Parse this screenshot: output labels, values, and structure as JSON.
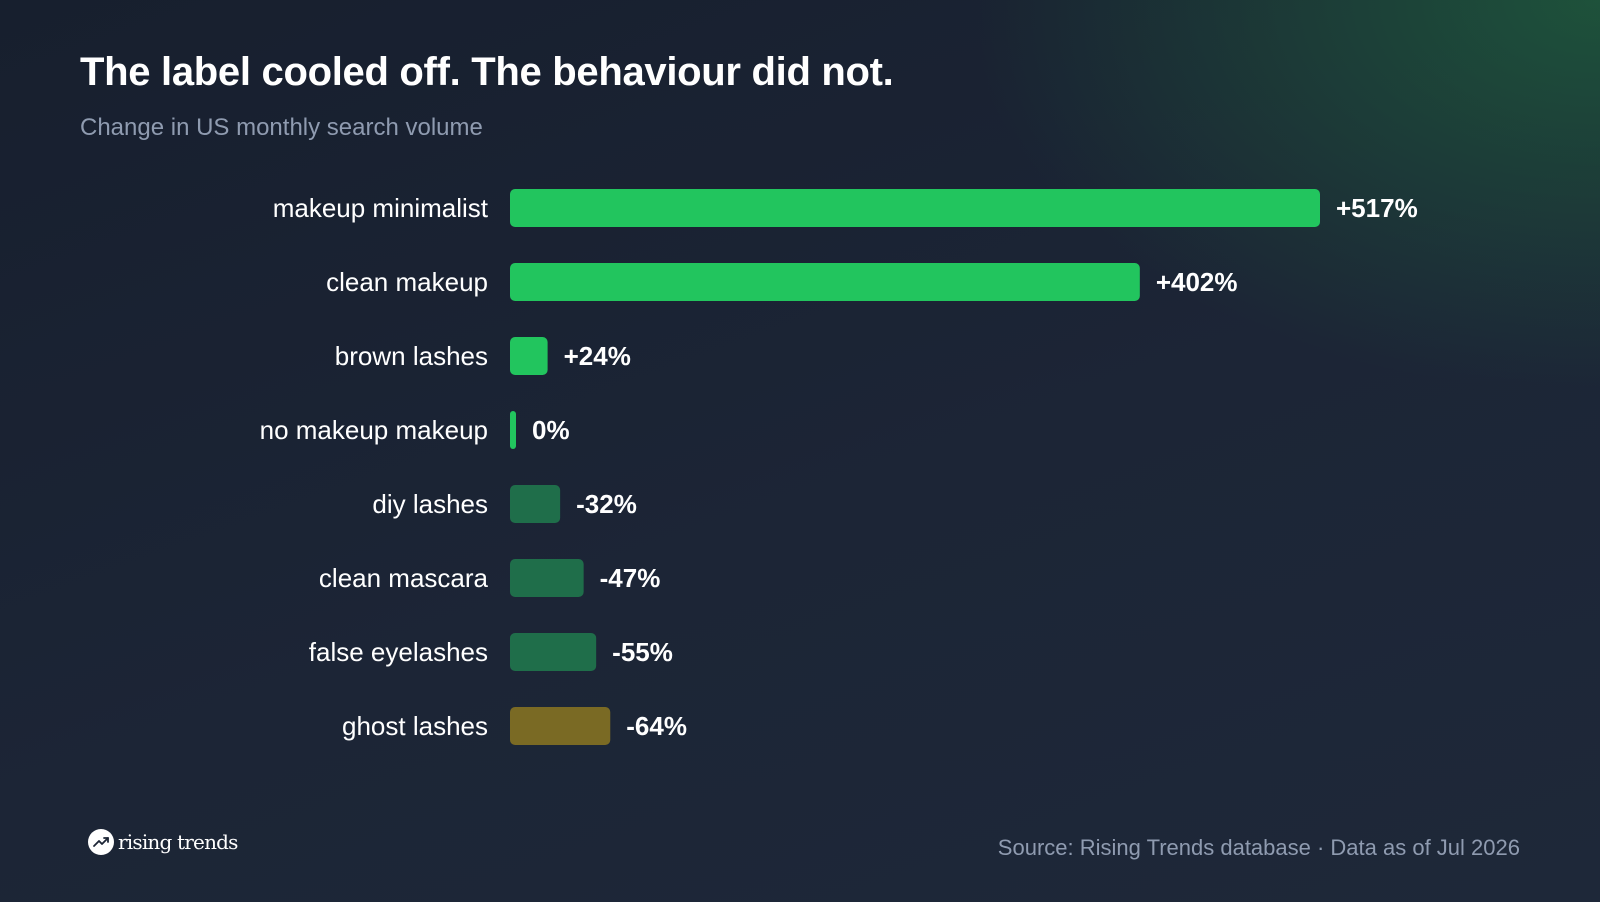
{
  "title": "The label cooled off. The behaviour did not.",
  "subtitle": "Change in US monthly search volume",
  "chart_data": {
    "type": "bar",
    "orientation": "horizontal",
    "categories": [
      "makeup minimalist",
      "clean makeup",
      "brown lashes",
      "no makeup makeup",
      "diy lashes",
      "clean mascara",
      "false eyelashes",
      "ghost lashes"
    ],
    "values": [
      517,
      402,
      24,
      0,
      -32,
      -47,
      -55,
      -64
    ],
    "value_labels": [
      "+517%",
      "+402%",
      "+24%",
      "0%",
      "-32%",
      "-47%",
      "-55%",
      "-64%"
    ],
    "colors": {
      "positive": "#22c55e",
      "negative": "#1f6e4a",
      "lowest": "#7a6a24"
    },
    "xlabel": "",
    "ylabel": "",
    "grid": false,
    "legend": "none"
  },
  "footer": {
    "brand": "rising trends",
    "brand_icon": "trending-up-icon",
    "source": "Source: Rising Trends database · Data as of Jul 2026"
  }
}
